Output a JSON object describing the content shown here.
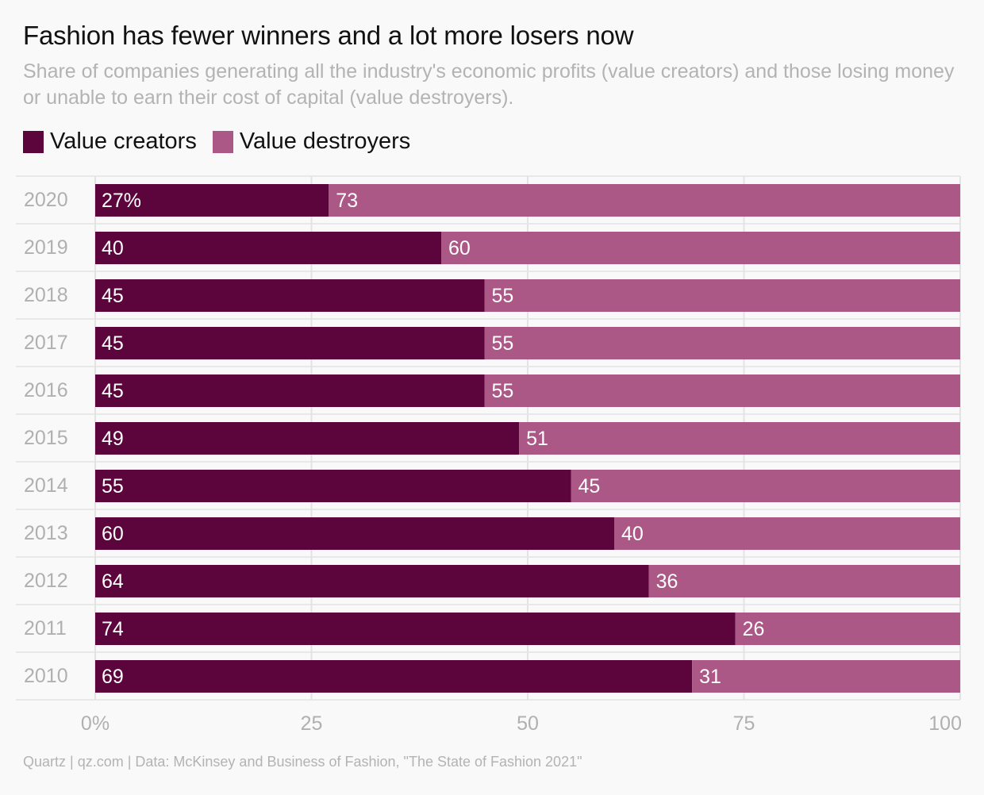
{
  "title": "Fashion has fewer winners and a lot more losers now",
  "subtitle": "Share of companies generating all the industry's economic profits (value creators) and those losing money or unable to earn their cost of capital (value destroyers).",
  "source": "Quartz | qz.com | Data: McKinsey and Business of Fashion, \"The State of Fashion 2021\"",
  "colors": {
    "creators": "#5b053c",
    "destroyers": "#ac5887",
    "grid": "#e3e3e3",
    "tick": "#b0b0b0"
  },
  "chart_data": {
    "type": "bar",
    "orientation": "horizontal",
    "stacked": true,
    "title": "Fashion has fewer winners and a lot more losers now",
    "categories": [
      "2020",
      "2019",
      "2018",
      "2017",
      "2016",
      "2015",
      "2014",
      "2013",
      "2012",
      "2011",
      "2010"
    ],
    "series": [
      {
        "name": "Value creators",
        "values": [
          27,
          40,
          45,
          45,
          45,
          49,
          55,
          60,
          64,
          74,
          69
        ],
        "labels": [
          "27%",
          "40",
          "45",
          "45",
          "45",
          "49",
          "55",
          "60",
          "64",
          "74",
          "69"
        ]
      },
      {
        "name": "Value destroyers",
        "values": [
          73,
          60,
          55,
          55,
          55,
          51,
          45,
          40,
          36,
          26,
          31
        ],
        "labels": [
          "73",
          "60",
          "55",
          "55",
          "55",
          "51",
          "45",
          "40",
          "36",
          "26",
          "31"
        ]
      }
    ],
    "xlim": [
      0,
      100
    ],
    "xticks": [
      0,
      25,
      50,
      75,
      100
    ],
    "xtick_labels": [
      "0%",
      "25",
      "50",
      "75",
      "100"
    ],
    "legend_position": "top-left",
    "grid": true
  }
}
